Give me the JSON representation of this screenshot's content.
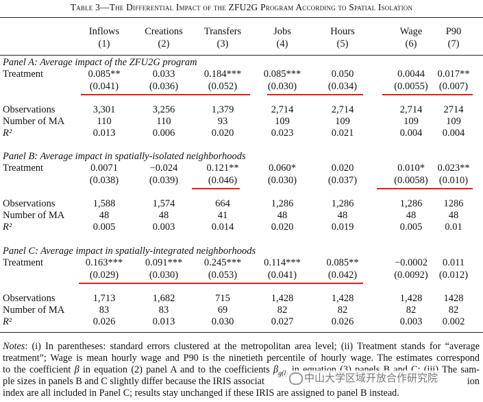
{
  "title": "Table 3—The Differential Impact of the ZFU2G Program According to Spatial Isolation",
  "columns": [
    {
      "name": "Inflows",
      "number": "(1)"
    },
    {
      "name": "Creations",
      "number": "(2)"
    },
    {
      "name": "Transfers",
      "number": "(3)"
    },
    {
      "name": "Jobs",
      "number": "(4)"
    },
    {
      "name": "Hours",
      "number": "(5)"
    },
    {
      "name": "Wage",
      "number": "(6)"
    },
    {
      "name": "P90",
      "number": "(7)"
    }
  ],
  "panels": [
    {
      "title": "Panel A: Average impact of the ZFU2G program",
      "coefficient_row": {
        "label": "Treatment",
        "values": [
          "0.085**",
          "0.033",
          "0.184***",
          "0.085***",
          "0.050",
          "0.0044",
          "0.017**"
        ]
      },
      "standard_errors": [
        "(0.041)",
        "(0.036)",
        "(0.052)",
        "(0.030)",
        "(0.034)",
        "(0.0055)",
        "(0.007)"
      ],
      "stats": [
        {
          "label": "Observations",
          "values": [
            "3,301",
            "3,256",
            "1,379",
            "2,714",
            "2,714",
            "2,714",
            "2714"
          ]
        },
        {
          "label": "Number of MA",
          "values": [
            "110",
            "110",
            "93",
            "109",
            "109",
            "109",
            "109"
          ]
        },
        {
          "label": "R²",
          "values": [
            "0.013",
            "0.006",
            "0.020",
            "0.023",
            "0.021",
            "0.004",
            "0.004"
          ]
        }
      ]
    },
    {
      "title": "Panel B: Average impact in spatially-isolated neighborhoods",
      "coefficient_row": {
        "label": "Treatment",
        "values": [
          "0.0071",
          "−0.024",
          "0.121**",
          "0.060*",
          "0.020",
          "0.010*",
          "0.023**"
        ]
      },
      "standard_errors": [
        "(0.038)",
        "(0.039)",
        "(0.046)",
        "(0.030)",
        "(0.037)",
        "(0.0058)",
        "(0.010)"
      ],
      "stats": [
        {
          "label": "Observations",
          "values": [
            "1,588",
            "1,574",
            "664",
            "1,286",
            "1,286",
            "1,286",
            "1286"
          ]
        },
        {
          "label": "Number of MA",
          "values": [
            "48",
            "48",
            "41",
            "48",
            "48",
            "48",
            "48"
          ]
        },
        {
          "label": "R²",
          "values": [
            "0.005",
            "0.003",
            "0.014",
            "0.020",
            "0.019",
            "0.005",
            "0.01"
          ]
        }
      ]
    },
    {
      "title": "Panel C: Average impact in spatially-integrated neighborhoods",
      "coefficient_row": {
        "label": "Treatment",
        "values": [
          "0.163***",
          "0.091***",
          "0.245***",
          "0.114***",
          "0.085**",
          "−0.0002",
          "0.011"
        ]
      },
      "standard_errors": [
        "(0.029)",
        "(0.030)",
        "(0.053)",
        "(0.041)",
        "(0.042)",
        "(0.0092)",
        "(0.012)"
      ],
      "stats": [
        {
          "label": "Observations",
          "values": [
            "1,713",
            "1,682",
            "715",
            "1,428",
            "1,428",
            "1,428",
            "1428"
          ]
        },
        {
          "label": "Number of MA",
          "values": [
            "83",
            "83",
            "69",
            "82",
            "82",
            "82",
            "82"
          ]
        },
        {
          "label": "R²",
          "values": [
            "0.026",
            "0.013",
            "0.030",
            "0.027",
            "0.026",
            "0.003",
            "0.002"
          ]
        }
      ]
    }
  ],
  "notes": {
    "label": "Notes",
    "lines": [
      [
        ": (i) In parentheses: standard errors clustered at the metropolitan area level; (ii) Treatment stands for “average"
      ],
      [
        "treatment”; Wage is mean hourly wage and P90 is the ninetieth percentile of hourly wage. The estimates correspond"
      ],
      [
        "to the coefficient ",
        "β",
        " in equation (2) panel A and to the coefficients ",
        "β",
        "g(l)",
        " in equation (3) panels B and C; (iii) The sam-"
      ],
      [
        "ple sizes in panels B and C slightly differ because the IRIS associat",
        "ion"
      ],
      [
        "index are all included in Panel C; results stay unchanged if these IRIS are assigned to panel B instead."
      ]
    ]
  },
  "watermark": "中山大学区域开放合作研究院"
}
